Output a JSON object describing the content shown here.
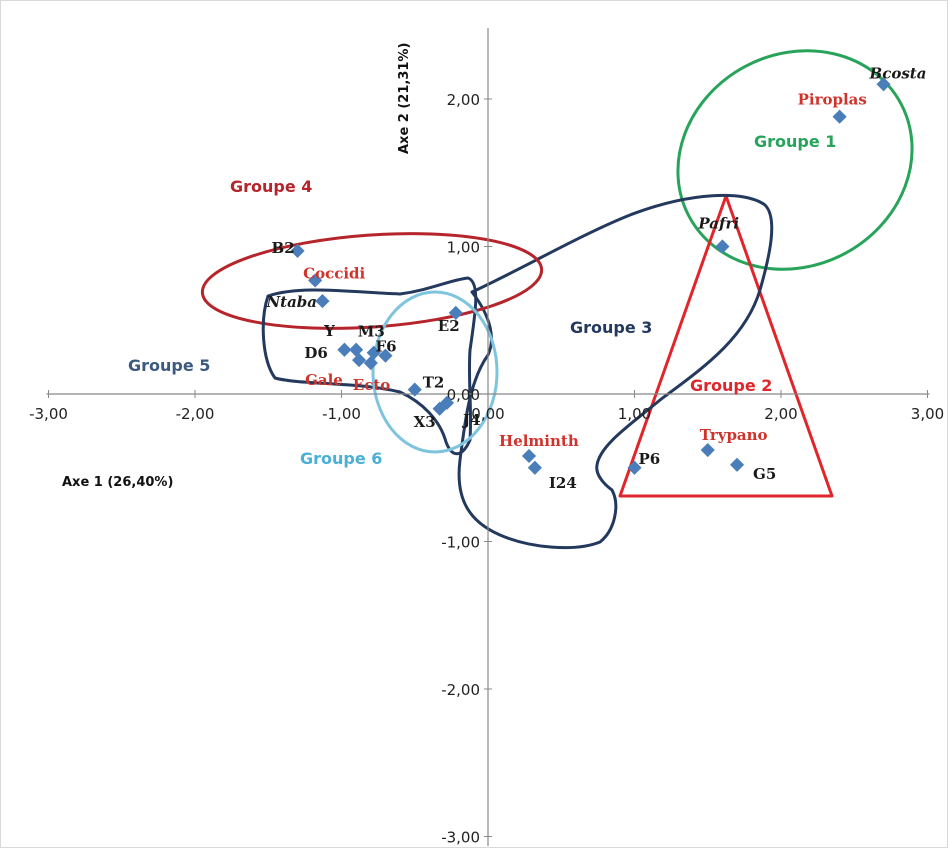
{
  "chart_data": {
    "type": "scatter",
    "xlabel": "Axe 1 (26,40%)",
    "ylabel": "Axe 2 (21,31%)",
    "xlim": [
      -3,
      3
    ],
    "ylim": [
      -3,
      2.5
    ],
    "x_ticks": [
      "-3,00",
      "-2,00",
      "-1,00",
      "0,00",
      "1,00",
      "2,00",
      "3,00"
    ],
    "x_tick_values": [
      -3,
      -2,
      -1,
      0,
      1,
      2,
      3
    ],
    "y_ticks": [
      "2,00",
      "1,00",
      "0,00",
      "-1,00",
      "-2,00",
      "-3,00"
    ],
    "y_tick_values": [
      2,
      1,
      0,
      -1,
      -2,
      -3
    ],
    "grid": false,
    "point_color": "#4a7ebb",
    "points": [
      {
        "x": 2.7,
        "y": 2.1,
        "label": "Bcosta",
        "color": "#1a1a1a",
        "italic": true
      },
      {
        "x": 2.4,
        "y": 1.88,
        "label": "Piroplas",
        "color": "#d0332b",
        "italic": false
      },
      {
        "x": 1.6,
        "y": 1.0,
        "label": "Pafri",
        "color": "#1a1a1a",
        "italic": true
      },
      {
        "x": -1.3,
        "y": 0.97,
        "label": "B2",
        "color": "#1a1a1a",
        "italic": false
      },
      {
        "x": -1.18,
        "y": 0.77,
        "label": "Coccidi",
        "color": "#d0332b",
        "italic": false
      },
      {
        "x": -1.13,
        "y": 0.63,
        "label": "Ntaba",
        "color": "#1a1a1a",
        "italic": true
      },
      {
        "x": -0.22,
        "y": 0.55,
        "label": "E2",
        "color": "#1a1a1a",
        "italic": false
      },
      {
        "x": -0.9,
        "y": 0.3,
        "label": "Y",
        "color": "#1a1a1a",
        "italic": false
      },
      {
        "x": -0.78,
        "y": 0.28,
        "label": "M3",
        "color": "#1a1a1a",
        "italic": false
      },
      {
        "x": -0.98,
        "y": 0.3,
        "label": "D6",
        "color": "#1a1a1a",
        "italic": false
      },
      {
        "x": -0.7,
        "y": 0.26,
        "label": "F6",
        "color": "#1a1a1a",
        "italic": false
      },
      {
        "x": -0.88,
        "y": 0.23,
        "label": "Gale",
        "color": "#d0332b",
        "italic": false
      },
      {
        "x": -0.8,
        "y": 0.21,
        "label": "Ecto",
        "color": "#d0332b",
        "italic": false
      },
      {
        "x": -0.5,
        "y": 0.03,
        "label": "T2",
        "color": "#1a1a1a",
        "italic": false
      },
      {
        "x": -0.33,
        "y": -0.1,
        "label": "X3",
        "color": "#1a1a1a",
        "italic": false
      },
      {
        "x": -0.28,
        "y": -0.06,
        "label": "J4",
        "color": "#1a1a1a",
        "italic": false
      },
      {
        "x": 0.28,
        "y": -0.42,
        "label": "Helminth",
        "color": "#d0332b",
        "italic": false
      },
      {
        "x": 0.32,
        "y": -0.5,
        "label": "I24",
        "color": "#1a1a1a",
        "italic": false
      },
      {
        "x": 1.0,
        "y": -0.5,
        "label": "P6",
        "color": "#1a1a1a",
        "italic": false
      },
      {
        "x": 1.5,
        "y": -0.38,
        "label": "Trypano",
        "color": "#d0332b",
        "italic": false
      },
      {
        "x": 1.7,
        "y": -0.48,
        "label": "G5",
        "color": "#1a1a1a",
        "italic": false
      }
    ],
    "groups": [
      {
        "name": "Groupe 1",
        "color": "#27a35a"
      },
      {
        "name": "Groupe 2",
        "color": "#e0262b"
      },
      {
        "name": "Groupe 3",
        "color": "#23395d"
      },
      {
        "name": "Groupe 4",
        "color": "#b5252b"
      },
      {
        "name": "Groupe 5",
        "color": "#3c5a80"
      },
      {
        "name": "Groupe 6",
        "color": "#4ab0d6"
      }
    ]
  }
}
